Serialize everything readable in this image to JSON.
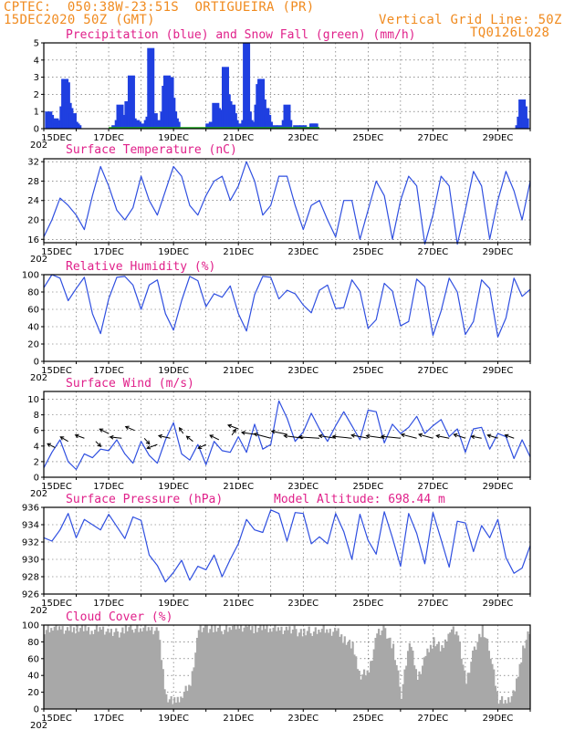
{
  "header": {
    "line1_left": "CPTEC:  050:38W-23:51S  ORTIGUEIRA (PR)",
    "line2_left": "15DEC2020 50Z (GMT)",
    "line1_right": "Vertical Grid Line: 50Z",
    "line2_right": "TQ0126L028"
  },
  "x_axis": {
    "labels": [
      "15DEC",
      "17DEC",
      "19DEC",
      "21DEC",
      "23DEC",
      "25DEC",
      "27DEC",
      "29DEC"
    ],
    "year_stub": "202"
  },
  "colors": {
    "rain": "#1f3fe0",
    "snow": "#19a819",
    "line": "#2f4fe0",
    "cloud": "#a8a8a8",
    "title": "#e0208a",
    "header": "#f08a1e"
  },
  "chart_data": [
    {
      "type": "bar",
      "title": "Precipitation (blue) and Snow Fall (green) (mm/h)",
      "ylim": [
        0,
        5
      ],
      "yticks": [
        0,
        1,
        2,
        3,
        4,
        5
      ],
      "series": [
        {
          "name": "Precipitation",
          "points": [
            [
              0.15,
              1.0
            ],
            [
              0.2,
              0.8
            ],
            [
              0.25,
              0.4
            ],
            [
              0.35,
              0.6
            ],
            [
              0.4,
              0.3
            ],
            [
              0.5,
              0.2
            ],
            [
              0.55,
              0.5
            ],
            [
              0.6,
              1.3
            ],
            [
              0.65,
              2.9
            ],
            [
              0.7,
              2.7
            ],
            [
              0.75,
              1.5
            ],
            [
              0.8,
              1.2
            ],
            [
              0.85,
              0.6
            ],
            [
              0.9,
              0.9
            ],
            [
              0.95,
              0.4
            ],
            [
              1.0,
              0.3
            ],
            [
              1.05,
              0.2
            ],
            [
              2.2,
              0.2
            ],
            [
              2.3,
              0.5
            ],
            [
              2.35,
              1.4
            ],
            [
              2.4,
              0.6
            ],
            [
              2.5,
              0.8
            ],
            [
              2.6,
              1.6
            ],
            [
              2.65,
              0.9
            ],
            [
              2.7,
              3.1
            ],
            [
              2.75,
              0.6
            ],
            [
              2.8,
              0.3
            ],
            [
              2.85,
              0.5
            ],
            [
              2.9,
              0.4
            ],
            [
              3.1,
              0.3
            ],
            [
              3.2,
              0.5
            ],
            [
              3.25,
              0.7
            ],
            [
              3.3,
              4.7
            ],
            [
              3.35,
              0.3
            ],
            [
              3.4,
              0.9
            ],
            [
              3.5,
              0.5
            ],
            [
              3.6,
              0.4
            ],
            [
              3.7,
              1.0
            ],
            [
              3.75,
              2.5
            ],
            [
              3.8,
              3.1
            ],
            [
              3.85,
              2.2
            ],
            [
              3.9,
              3.0
            ],
            [
              3.95,
              1.8
            ],
            [
              4.0,
              1.0
            ],
            [
              4.05,
              0.6
            ],
            [
              4.1,
              0.4
            ],
            [
              5.1,
              0.3
            ],
            [
              5.2,
              0.4
            ],
            [
              5.3,
              1.5
            ],
            [
              5.35,
              1.2
            ],
            [
              5.4,
              0.6
            ],
            [
              5.5,
              1.1
            ],
            [
              5.6,
              3.6
            ],
            [
              5.65,
              2.0
            ],
            [
              5.7,
              1.6
            ],
            [
              5.75,
              0.8
            ],
            [
              5.8,
              1.4
            ],
            [
              5.85,
              0.9
            ],
            [
              5.9,
              0.5
            ],
            [
              6.0,
              0.3
            ],
            [
              6.2,
              0.5
            ],
            [
              6.25,
              5.0
            ],
            [
              6.3,
              1.0
            ],
            [
              6.35,
              0.5
            ],
            [
              6.4,
              0.3
            ],
            [
              6.5,
              0.4
            ],
            [
              6.6,
              1.4
            ],
            [
              6.65,
              2.6
            ],
            [
              6.7,
              2.9
            ],
            [
              6.75,
              1.7
            ],
            [
              6.8,
              1.0
            ],
            [
              6.85,
              1.2
            ],
            [
              6.9,
              0.8
            ],
            [
              6.95,
              0.4
            ],
            [
              7.1,
              0.2
            ],
            [
              7.3,
              0.2
            ],
            [
              7.45,
              0.5
            ],
            [
              7.5,
              1.4
            ],
            [
              7.55,
              0.5
            ],
            [
              7.8,
              0.2
            ],
            [
              8.0,
              0.2
            ],
            [
              8.2,
              0.1
            ],
            [
              8.3,
              0.3
            ],
            [
              8.35,
              0.3
            ],
            [
              14.65,
              0.2
            ],
            [
              14.7,
              0.7
            ],
            [
              14.75,
              1.7
            ],
            [
              14.8,
              1.3
            ],
            [
              14.85,
              0.6
            ]
          ]
        },
        {
          "name": "Snow Fall",
          "points": []
        }
      ]
    },
    {
      "type": "line",
      "title": "Surface Temperature (nC)",
      "ylim": [
        15.3,
        32.6
      ],
      "yticks": [
        16,
        20,
        24,
        28,
        32
      ],
      "x": [
        0,
        0.25,
        0.5,
        0.75,
        1,
        1.25,
        1.5,
        1.75,
        2,
        2.25,
        2.5,
        2.75,
        3,
        3.25,
        3.5,
        3.75,
        4,
        4.25,
        4.5,
        4.75,
        5,
        5.25,
        5.5,
        5.75,
        6,
        6.25,
        6.5,
        6.75,
        7,
        7.25,
        7.5,
        7.75,
        8,
        8.25,
        8.5,
        8.75,
        9,
        9.25,
        9.5,
        9.75,
        10,
        10.25,
        10.5,
        10.75,
        11,
        11.25,
        11.5,
        11.75,
        12,
        12.25,
        12.5,
        12.75,
        13,
        13.25,
        13.5,
        13.75,
        14,
        14.25,
        14.5,
        14.75,
        15
      ],
      "values": [
        16.5,
        20,
        24.5,
        23,
        21,
        18,
        25,
        31,
        27,
        22,
        20,
        22.5,
        29,
        24,
        21,
        26,
        31,
        29,
        23,
        21,
        25,
        28,
        29,
        24,
        27,
        32,
        28,
        21,
        23,
        29,
        29,
        23,
        18,
        23,
        24,
        20,
        16.5,
        24,
        24,
        16,
        22,
        28,
        25,
        16,
        24,
        29,
        27,
        15,
        21,
        29,
        27,
        15,
        22,
        30,
        27,
        16,
        24,
        30,
        26,
        20,
        28
      ]
    },
    {
      "type": "line",
      "title": "Relative Humidity (%)",
      "ylim": [
        0,
        100
      ],
      "yticks": [
        0,
        20,
        40,
        60,
        80,
        100
      ],
      "x": [
        0,
        0.25,
        0.5,
        0.75,
        1,
        1.25,
        1.5,
        1.75,
        2,
        2.25,
        2.5,
        2.75,
        3,
        3.25,
        3.5,
        3.75,
        4,
        4.25,
        4.5,
        4.75,
        5,
        5.25,
        5.5,
        5.75,
        6,
        6.25,
        6.5,
        6.75,
        7,
        7.25,
        7.5,
        7.75,
        8,
        8.25,
        8.5,
        8.75,
        9,
        9.25,
        9.5,
        9.75,
        10,
        10.25,
        10.5,
        10.75,
        11,
        11.25,
        11.5,
        11.75,
        12,
        12.25,
        12.5,
        12.75,
        13,
        13.25,
        13.5,
        13.75,
        14,
        14.25,
        14.5,
        14.75,
        15
      ],
      "values": [
        85,
        100,
        96,
        70,
        84,
        97,
        55,
        32,
        72,
        97,
        98,
        88,
        60,
        88,
        94,
        55,
        36,
        70,
        98,
        93,
        63,
        78,
        74,
        87,
        55,
        35,
        77,
        98,
        97,
        72,
        82,
        78,
        65,
        56,
        82,
        88,
        61,
        62,
        94,
        81,
        38,
        48,
        90,
        81,
        41,
        46,
        95,
        86,
        30,
        58,
        96,
        80,
        31,
        46,
        94,
        84,
        28,
        50,
        96,
        75,
        83
      ]
    },
    {
      "type": "line",
      "title": "Surface Wind (m/s)",
      "ylim": [
        0,
        11
      ],
      "yticks": [
        0,
        2,
        4,
        6,
        8,
        10
      ],
      "x": [
        0,
        0.25,
        0.5,
        0.75,
        1,
        1.25,
        1.5,
        1.75,
        2,
        2.25,
        2.5,
        2.75,
        3,
        3.25,
        3.5,
        3.75,
        4,
        4.25,
        4.5,
        4.75,
        5,
        5.25,
        5.5,
        5.75,
        6,
        6.25,
        6.5,
        6.75,
        7,
        7.25,
        7.5,
        7.75,
        8,
        8.25,
        8.5,
        8.75,
        9,
        9.25,
        9.5,
        9.75,
        10,
        10.25,
        10.5,
        10.75,
        11,
        11.25,
        11.5,
        11.75,
        12,
        12.25,
        12.5,
        12.75,
        13,
        13.25,
        13.5,
        13.75,
        14,
        14.25,
        14.5,
        14.75,
        15
      ],
      "values": [
        1.2,
        3.2,
        4.8,
        2,
        1,
        3,
        2.5,
        3.6,
        3.4,
        4.8,
        3,
        1.8,
        4.6,
        2.8,
        1.8,
        4.8,
        7,
        3,
        2.2,
        4.2,
        1.6,
        4.6,
        3.4,
        3.2,
        5.2,
        3.2,
        6.8,
        3.6,
        4.2,
        9.8,
        7.6,
        4.6,
        5.8,
        8.2,
        6.2,
        4.6,
        6.6,
        8.4,
        6.6,
        4.8,
        8.6,
        8.4,
        4.4,
        6.8,
        5.6,
        6.4,
        7.8,
        5.6,
        6.6,
        7.4,
        5.2,
        6.2,
        3.2,
        6.2,
        6.4,
        3.6,
        5.6,
        5.2,
        2.4,
        4.8,
        2.6
      ],
      "arrows": [
        [
          0.35,
          3.8,
          -0.6,
          0.6
        ],
        [
          0.75,
          4.6,
          -0.6,
          0.7
        ],
        [
          1.25,
          5.0,
          -0.7,
          0.5
        ],
        [
          1.6,
          4.6,
          0.4,
          -0.8
        ],
        [
          2.0,
          5.6,
          -0.7,
          0.7
        ],
        [
          2.4,
          5.0,
          -0.9,
          0.2
        ],
        [
          2.8,
          6.0,
          -0.7,
          0.6
        ],
        [
          3.1,
          5.0,
          0.4,
          -0.9
        ],
        [
          3.5,
          4.2,
          -0.8,
          -0.6
        ],
        [
          3.9,
          5.0,
          -0.9,
          0.4
        ],
        [
          4.3,
          5.6,
          -0.3,
          0.9
        ],
        [
          4.6,
          4.6,
          -0.5,
          0.8
        ],
        [
          5.0,
          4.2,
          -0.6,
          -0.6
        ],
        [
          5.4,
          4.8,
          -0.7,
          0.7
        ],
        [
          5.8,
          5.4,
          0.3,
          0.9
        ],
        [
          6.0,
          6.2,
          -0.8,
          0.6
        ],
        [
          6.5,
          5.5,
          -1.0,
          0.3
        ],
        [
          7.0,
          5.0,
          -1.3,
          0.7
        ],
        [
          7.5,
          5.5,
          -1.2,
          0.5
        ],
        [
          8.0,
          5.0,
          -1.5,
          0.4
        ],
        [
          8.5,
          5.0,
          -1.6,
          0.2
        ],
        [
          9.0,
          5.0,
          -1.3,
          0.4
        ],
        [
          9.5,
          5.0,
          -1.5,
          0.3
        ],
        [
          10.0,
          5.0,
          -1.3,
          0.5
        ],
        [
          10.5,
          5.0,
          -1.4,
          0.4
        ],
        [
          11.0,
          5.0,
          -1.5,
          0.3
        ],
        [
          11.5,
          5.0,
          -1.2,
          0.6
        ],
        [
          12.0,
          5.0,
          -1.1,
          0.6
        ],
        [
          12.5,
          5.0,
          -1.0,
          0.4
        ],
        [
          13.0,
          5.0,
          -0.9,
          0.6
        ],
        [
          13.5,
          5.0,
          -0.8,
          0.3
        ],
        [
          14.0,
          5.0,
          -0.8,
          0.5
        ],
        [
          14.5,
          5.0,
          -0.7,
          0.5
        ]
      ]
    },
    {
      "type": "line",
      "title": "Surface Pressure (hPa)",
      "annotation": "Model Altitude: 698.44  m",
      "ylim": [
        926,
        936
      ],
      "yticks": [
        926,
        928,
        930,
        932,
        934,
        936
      ],
      "x": [
        0,
        0.25,
        0.5,
        0.75,
        1,
        1.25,
        1.5,
        1.75,
        2,
        2.25,
        2.5,
        2.75,
        3,
        3.25,
        3.5,
        3.75,
        4,
        4.25,
        4.5,
        4.75,
        5,
        5.25,
        5.5,
        5.75,
        6,
        6.25,
        6.5,
        6.75,
        7,
        7.25,
        7.5,
        7.75,
        8,
        8.25,
        8.5,
        8.75,
        9,
        9.25,
        9.5,
        9.75,
        10,
        10.25,
        10.5,
        10.75,
        11,
        11.25,
        11.5,
        11.75,
        12,
        12.25,
        12.5,
        12.75,
        13,
        13.25,
        13.5,
        13.75,
        14,
        14.25,
        14.5,
        14.75,
        15
      ],
      "values": [
        932.5,
        932.1,
        933.4,
        935.3,
        932.5,
        934.6,
        934.0,
        933.4,
        935.2,
        933.8,
        932.4,
        934.9,
        934.5,
        930.5,
        929.3,
        927.4,
        928.5,
        929.9,
        927.6,
        929.2,
        928.8,
        930.5,
        928.0,
        930.0,
        931.8,
        934.6,
        933.4,
        933.1,
        935.7,
        935.3,
        932.1,
        935.4,
        935.3,
        931.8,
        932.6,
        931.8,
        935.3,
        933.2,
        930.0,
        935.2,
        932.2,
        930.6,
        935.5,
        932.5,
        929.2,
        935.3,
        933.0,
        929.5,
        935.4,
        932.3,
        929.1,
        934.4,
        934.2,
        930.9,
        933.9,
        932.5,
        934.6,
        930.2,
        928.4,
        929.0,
        931.6
      ]
    },
    {
      "type": "area",
      "title": "Cloud Cover (%)",
      "ylim": [
        0,
        100
      ],
      "yticks": [
        0,
        20,
        40,
        60,
        80,
        100
      ],
      "x": [
        0,
        0.25,
        0.5,
        0.75,
        1,
        1.25,
        1.5,
        1.75,
        2,
        2.25,
        2.5,
        2.75,
        3,
        3.25,
        3.5,
        3.75,
        4,
        4.25,
        4.5,
        4.75,
        5,
        5.25,
        5.5,
        5.75,
        6,
        6.25,
        6.5,
        6.75,
        7,
        7.25,
        7.5,
        7.75,
        8,
        8.25,
        8.5,
        8.75,
        9,
        9.25,
        9.5,
        9.75,
        10,
        10.25,
        10.5,
        10.75,
        11,
        11.25,
        11.5,
        11.75,
        12,
        12.25,
        12.5,
        12.75,
        13,
        13.25,
        13.5,
        13.75,
        14,
        14.25,
        14.5,
        14.75,
        15
      ],
      "values": [
        95,
        97,
        96,
        92,
        97,
        96,
        94,
        97,
        91,
        90,
        96,
        97,
        96,
        95,
        92,
        14,
        8,
        18,
        30,
        94,
        97,
        96,
        95,
        98,
        97,
        97,
        96,
        98,
        97,
        96,
        94,
        93,
        91,
        93,
        95,
        92,
        92,
        83,
        74,
        40,
        46,
        90,
        94,
        73,
        18,
        82,
        36,
        62,
        82,
        70,
        96,
        90,
        30,
        72,
        95,
        66,
        10,
        8,
        20,
        72,
        98
      ]
    }
  ]
}
